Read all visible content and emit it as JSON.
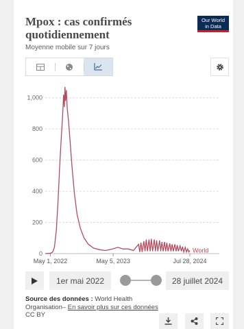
{
  "header": {
    "title": "Mpox : cas confirmés quotidiennement",
    "subtitle": "Moyenne mobile sur 7 jours",
    "logo_line1": "Our World",
    "logo_line2": "in Data"
  },
  "tabs": [
    {
      "icon": "table-icon",
      "active": false
    },
    {
      "icon": "globe-icon",
      "active": false
    },
    {
      "icon": "line-chart-icon",
      "active": true
    }
  ],
  "settings_icon": "gear-icon",
  "chart_data": {
    "type": "line",
    "series": [
      {
        "name": "World",
        "color": "#b54b5e",
        "points": [
          [
            "2022-04-01",
            0
          ],
          [
            "2022-05-01",
            2
          ],
          [
            "2022-05-15",
            10
          ],
          [
            "2022-05-25",
            40
          ],
          [
            "2022-06-05",
            150
          ],
          [
            "2022-06-15",
            330
          ],
          [
            "2022-06-25",
            560
          ],
          [
            "2022-07-05",
            760
          ],
          [
            "2022-07-12",
            880
          ],
          [
            "2022-07-18",
            1020
          ],
          [
            "2022-07-22",
            940
          ],
          [
            "2022-07-26",
            1070
          ],
          [
            "2022-07-29",
            980
          ],
          [
            "2022-08-03",
            1050
          ],
          [
            "2022-08-08",
            930
          ],
          [
            "2022-08-15",
            860
          ],
          [
            "2022-08-25",
            720
          ],
          [
            "2022-09-05",
            560
          ],
          [
            "2022-09-20",
            380
          ],
          [
            "2022-10-05",
            250
          ],
          [
            "2022-10-25",
            160
          ],
          [
            "2022-11-15",
            100
          ],
          [
            "2022-12-10",
            60
          ],
          [
            "2023-01-10",
            35
          ],
          [
            "2023-02-15",
            25
          ],
          [
            "2023-03-20",
            20
          ],
          [
            "2023-05-01",
            30
          ],
          [
            "2023-06-01",
            40
          ],
          [
            "2023-07-01",
            30
          ],
          [
            "2023-08-01",
            30
          ],
          [
            "2023-09-01",
            20
          ],
          [
            "2023-10-01",
            60
          ],
          [
            "2023-10-08",
            10
          ],
          [
            "2023-10-15",
            70
          ],
          [
            "2023-10-22",
            10
          ],
          [
            "2023-11-01",
            80
          ],
          [
            "2023-11-08",
            15
          ],
          [
            "2023-11-15",
            90
          ],
          [
            "2023-11-22",
            15
          ],
          [
            "2023-12-01",
            90
          ],
          [
            "2023-12-08",
            15
          ],
          [
            "2023-12-15",
            95
          ],
          [
            "2023-12-22",
            15
          ],
          [
            "2024-01-01",
            90
          ],
          [
            "2024-01-08",
            15
          ],
          [
            "2024-01-15",
            85
          ],
          [
            "2024-01-22",
            15
          ],
          [
            "2024-02-01",
            85
          ],
          [
            "2024-02-08",
            15
          ],
          [
            "2024-02-15",
            75
          ],
          [
            "2024-02-22",
            15
          ],
          [
            "2024-03-01",
            75
          ],
          [
            "2024-03-08",
            15
          ],
          [
            "2024-03-15",
            70
          ],
          [
            "2024-03-22",
            15
          ],
          [
            "2024-04-01",
            65
          ],
          [
            "2024-04-08",
            15
          ],
          [
            "2024-04-15",
            60
          ],
          [
            "2024-04-22",
            15
          ],
          [
            "2024-05-01",
            60
          ],
          [
            "2024-05-08",
            15
          ],
          [
            "2024-05-15",
            55
          ],
          [
            "2024-05-22",
            15
          ],
          [
            "2024-06-01",
            50
          ],
          [
            "2024-06-08",
            15
          ],
          [
            "2024-06-15",
            45
          ],
          [
            "2024-06-22",
            10
          ],
          [
            "2024-07-01",
            40
          ],
          [
            "2024-07-08",
            10
          ],
          [
            "2024-07-15",
            30
          ],
          [
            "2024-07-22",
            10
          ],
          [
            "2024-07-28",
            20
          ]
        ]
      }
    ],
    "x_ticks": [
      {
        "date": "2022-05-01",
        "label": "May 1, 2022"
      },
      {
        "date": "2023-05-05",
        "label": "May 5, 2023"
      },
      {
        "date": "2024-07-28",
        "label": "Jul 28, 2024"
      }
    ],
    "y_ticks": [
      0,
      200,
      400,
      600,
      800,
      1000
    ],
    "y_tick_labels": [
      "0",
      "200",
      "400",
      "600",
      "800",
      "1,000"
    ],
    "xlim": [
      "2022-04-01",
      "2024-07-28"
    ],
    "ylim": [
      0,
      1100
    ],
    "grid": true
  },
  "timeline": {
    "play_icon": "play-icon",
    "start_label": "1er mai 2022",
    "end_label": "28 juillet 2024"
  },
  "source": {
    "label": "Source des données :",
    "text": "World Health Organisation–",
    "link": "En savoir plus sur ces données",
    "license": "CC BY"
  },
  "actions": [
    "download-icon",
    "share-icon",
    "fullscreen-icon"
  ]
}
